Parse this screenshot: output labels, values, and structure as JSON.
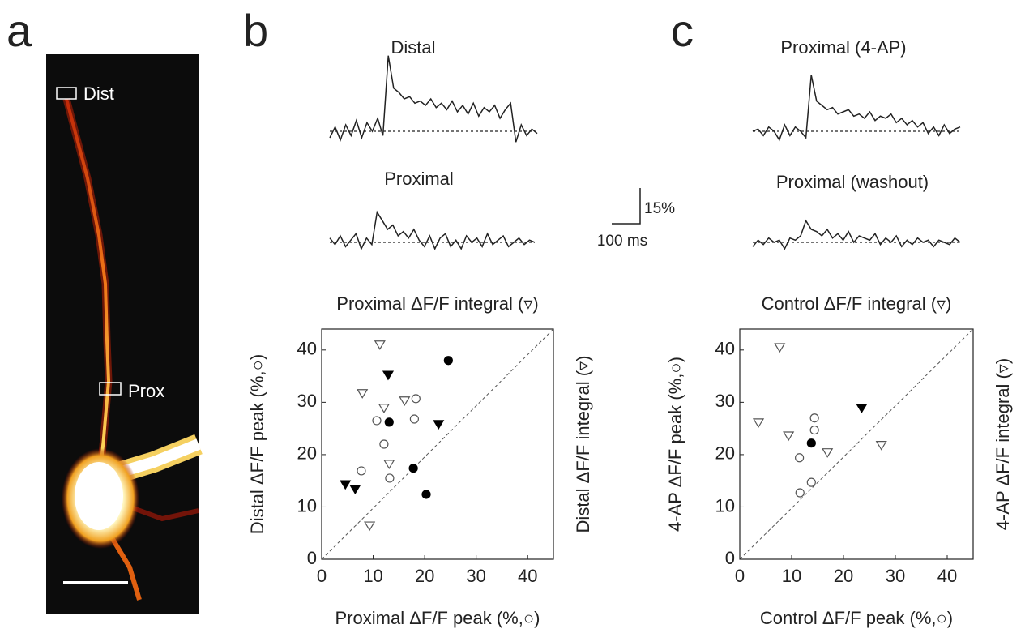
{
  "panel_labels": [
    "a",
    "b",
    "c"
  ],
  "image": {
    "labels": [
      "Dist",
      "Prox"
    ]
  },
  "scale_bar": {
    "y_label": "15%",
    "x_label": "100 ms"
  },
  "chart_data": [
    {
      "type": "trace",
      "title": "Distal",
      "color": "#222",
      "values": [
        -3,
        2,
        -4,
        3,
        -2,
        5,
        -3,
        4,
        0,
        6,
        -2,
        35,
        20,
        18,
        15,
        16,
        13,
        14,
        12,
        15,
        11,
        13,
        10,
        14,
        9,
        12,
        8,
        13,
        7,
        11,
        9,
        12,
        6,
        10,
        13,
        -5,
        3,
        -2,
        1,
        -1
      ]
    },
    {
      "type": "trace",
      "title": "Proximal",
      "color": "#222",
      "values": [
        2,
        -1,
        3,
        -2,
        1,
        4,
        -3,
        2,
        -1,
        14,
        10,
        6,
        8,
        3,
        5,
        2,
        6,
        1,
        -2,
        3,
        -3,
        2,
        4,
        -2,
        1,
        -3,
        3,
        0,
        2,
        -2,
        4,
        -1,
        1,
        3,
        -2,
        0,
        2,
        -1,
        1,
        0
      ]
    },
    {
      "type": "trace",
      "title": "Proximal (4-AP)",
      "color": "#222",
      "values": [
        0,
        1,
        -2,
        2,
        0,
        -4,
        3,
        -2,
        2,
        0,
        -3,
        26,
        14,
        12,
        10,
        11,
        8,
        9,
        10,
        7,
        8,
        6,
        9,
        5,
        7,
        6,
        8,
        4,
        6,
        3,
        5,
        2,
        4,
        -1,
        2,
        -2,
        3,
        -1,
        1,
        2
      ]
    },
    {
      "type": "trace",
      "title": "Proximal (washout)",
      "color": "#222",
      "values": [
        -2,
        1,
        -1,
        2,
        0,
        1,
        -3,
        2,
        1,
        3,
        10,
        6,
        5,
        3,
        6,
        2,
        4,
        1,
        5,
        0,
        3,
        2,
        1,
        4,
        -1,
        2,
        0,
        3,
        -2,
        1,
        -1,
        2,
        0,
        1,
        -2,
        1,
        0,
        -1,
        2,
        0
      ]
    },
    {
      "type": "scatter",
      "xlabel": "Proximal ΔF/F peak (%,○)",
      "ylabel": "Distal ΔF/F peak (%,○)",
      "x2label": "Proximal ΔF/F integral (▿)",
      "y2label": "Distal ΔF/F integral (▿)",
      "xlim": [
        0,
        45
      ],
      "ylim": [
        0,
        44
      ],
      "xticks": [
        0,
        10,
        20,
        30,
        40
      ],
      "yticks": [
        0,
        10,
        20,
        30,
        40
      ],
      "series": [
        {
          "marker": "circle",
          "filled": false,
          "color": "#555",
          "x": [
            10.7,
            12.1,
            7.7,
            13.2,
            18.3,
            18.0
          ],
          "y": [
            26.5,
            22.0,
            16.9,
            15.5,
            30.7,
            26.8
          ]
        },
        {
          "marker": "circle",
          "filled": true,
          "color": "#000",
          "x": [
            24.6,
            13.1,
            17.8,
            20.3
          ],
          "y": [
            38.0,
            26.2,
            17.4,
            12.4
          ]
        },
        {
          "marker": "triangle",
          "filled": false,
          "color": "#555",
          "x": [
            11.3,
            7.9,
            12.1,
            16.1,
            13.1,
            9.3
          ],
          "y": [
            41.1,
            31.8,
            29.0,
            30.4,
            18.3,
            6.5
          ]
        },
        {
          "marker": "triangle",
          "filled": true,
          "color": "#000",
          "x": [
            12.9,
            22.7,
            4.6,
            6.5
          ],
          "y": [
            35.3,
            25.9,
            14.4,
            13.5
          ]
        }
      ]
    },
    {
      "type": "scatter",
      "xlabel": "Control ΔF/F peak (%,○)",
      "ylabel": "4-AP ΔF/F peak (%,○)",
      "x2label": "Control ΔF/F integral (▿)",
      "y2label": "4-AP ΔF/F integral (▿)",
      "xlim": [
        0,
        45
      ],
      "ylim": [
        0,
        44
      ],
      "xticks": [
        0,
        10,
        20,
        30,
        40
      ],
      "yticks": [
        0,
        10,
        20,
        30,
        40
      ],
      "series": [
        {
          "marker": "circle",
          "filled": false,
          "color": "#555",
          "x": [
            11.6,
            13.8,
            11.5,
            14.4,
            14.4
          ],
          "y": [
            12.7,
            14.7,
            19.4,
            24.7,
            27.0
          ]
        },
        {
          "marker": "circle",
          "filled": true,
          "color": "#000",
          "x": [
            13.8
          ],
          "y": [
            22.2
          ]
        },
        {
          "marker": "triangle",
          "filled": false,
          "color": "#555",
          "x": [
            3.6,
            9.4,
            16.9,
            27.3,
            7.7
          ],
          "y": [
            26.2,
            23.7,
            20.5,
            21.9,
            40.6
          ]
        },
        {
          "marker": "triangle",
          "filled": true,
          "color": "#000",
          "x": [
            23.5
          ],
          "y": [
            29.0
          ]
        }
      ]
    }
  ]
}
